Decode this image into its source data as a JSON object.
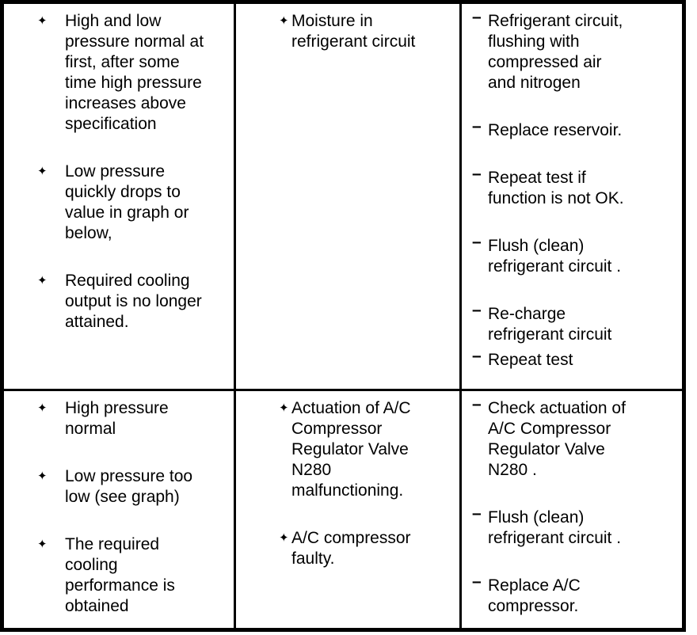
{
  "colors": {
    "background": "#ffffff",
    "border": "#000000",
    "text": "#000000"
  },
  "markers": {
    "diamond": "✦",
    "dash": "–"
  },
  "table": {
    "rows": [
      {
        "cells": [
          {
            "marker": "diamond",
            "items": [
              "High and low\npressure normal at\nfirst, after some\ntime high pressure\nincreases above\nspecification",
              "Low pressure\nquickly drops to\nvalue in graph or\nbelow,",
              "Required cooling\noutput is no longer\nattained."
            ]
          },
          {
            "marker": "diamond",
            "items": [
              "Moisture in\nrefrigerant circuit"
            ]
          },
          {
            "marker": "dash",
            "items": [
              "Refrigerant circuit,\nflushing with\ncompressed air\nand nitrogen",
              "Replace reservoir.",
              "Repeat test if\nfunction is not OK.",
              "Flush (clean)\nrefrigerant circuit .",
              "Re-charge\nrefrigerant circuit",
              {
                "text": "Repeat test",
                "tight": true
              }
            ]
          }
        ]
      },
      {
        "cells": [
          {
            "marker": "diamond",
            "items": [
              "High pressure\nnormal",
              "Low pressure too\nlow (see graph)",
              "The required\ncooling\nperformance is\nobtained"
            ]
          },
          {
            "marker": "diamond",
            "items": [
              "Actuation of A/C\nCompressor\nRegulator Valve\nN280\nmalfunctioning.",
              "A/C compressor\nfaulty."
            ]
          },
          {
            "marker": "dash",
            "items": [
              "Check actuation of\nA/C Compressor\nRegulator Valve\nN280 .",
              "Flush (clean)\nrefrigerant circuit .",
              "Replace A/C\ncompressor."
            ]
          }
        ]
      }
    ]
  }
}
